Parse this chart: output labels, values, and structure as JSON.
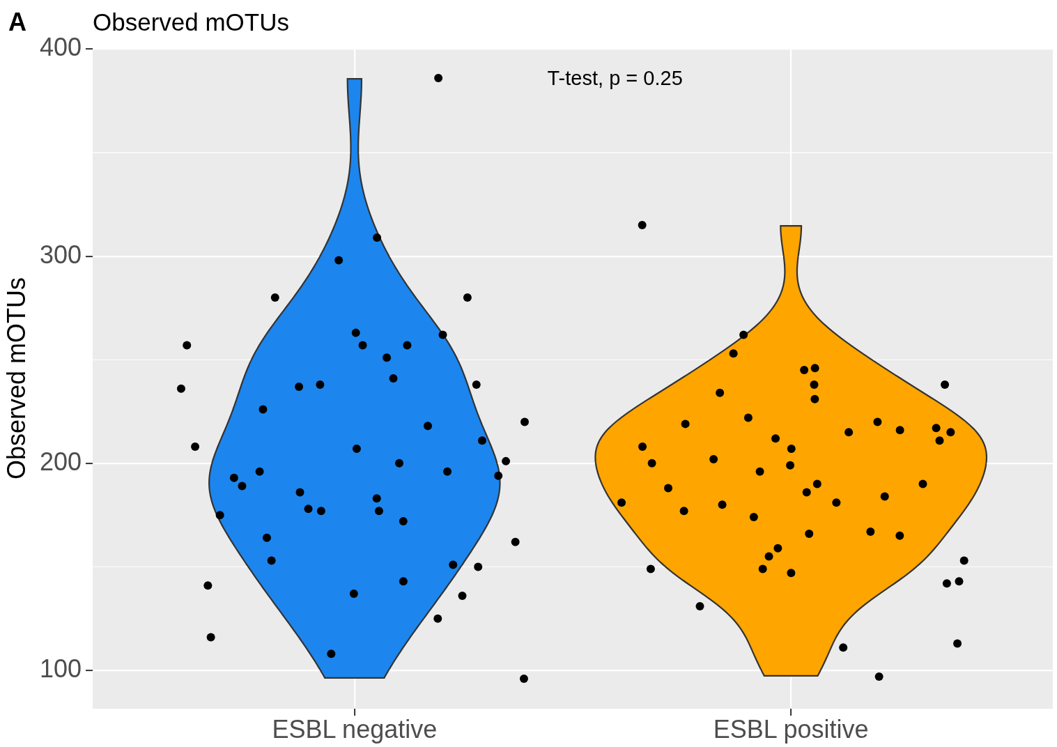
{
  "chart_data": {
    "type": "scatter",
    "title": "Observed mOTUs",
    "ylabel": "Observed mOTUs",
    "annotations": [
      "A",
      "T-test, p = 0.25"
    ],
    "categories": [
      "ESBL negative",
      "ESBL positive"
    ],
    "colors": [
      "#1c86ee",
      "#ffa500"
    ],
    "ylim": [
      81.5,
      400.5
    ],
    "yticks": [
      100,
      200,
      300,
      400
    ],
    "grid": true,
    "marker": "circle",
    "series": [
      {
        "color": "#000000",
        "x": [
          "ESBL negative",
          "ESBL negative",
          "ESBL negative",
          "ESBL negative",
          "ESBL negative",
          "ESBL negative",
          "ESBL negative",
          "ESBL negative",
          "ESBL negative",
          "ESBL negative",
          "ESBL negative",
          "ESBL negative",
          "ESBL negative",
          "ESBL negative",
          "ESBL negative",
          "ESBL negative",
          "ESBL negative",
          "ESBL negative",
          "ESBL negative",
          "ESBL negative",
          "ESBL negative",
          "ESBL negative",
          "ESBL negative",
          "ESBL negative",
          "ESBL negative",
          "ESBL negative",
          "ESBL negative",
          "ESBL negative",
          "ESBL negative",
          "ESBL negative",
          "ESBL negative",
          "ESBL negative",
          "ESBL negative",
          "ESBL negative",
          "ESBL negative",
          "ESBL negative",
          "ESBL negative",
          "ESBL negative",
          "ESBL negative",
          "ESBL negative",
          "ESBL negative",
          "ESBL negative",
          "ESBL negative",
          "ESBL negative",
          "ESBL negative",
          "ESBL negative",
          "ESBL negative",
          "ESBL negative",
          "ESBL negative"
        ],
        "values": [
          386,
          309,
          298,
          280,
          280,
          262,
          263,
          257,
          257,
          257,
          251,
          241,
          238,
          238,
          237,
          236,
          226,
          220,
          218,
          211,
          207,
          208,
          200,
          201,
          196,
          196,
          193,
          194,
          189,
          186,
          183,
          178,
          177,
          177,
          175,
          172,
          162,
          164,
          153,
          151,
          150,
          143,
          141,
          137,
          136,
          125,
          116,
          108,
          96
        ]
      },
      {
        "color": "#000000",
        "x": [
          "ESBL positive",
          "ESBL positive",
          "ESBL positive",
          "ESBL positive",
          "ESBL positive",
          "ESBL positive",
          "ESBL positive",
          "ESBL positive",
          "ESBL positive",
          "ESBL positive",
          "ESBL positive",
          "ESBL positive",
          "ESBL positive",
          "ESBL positive",
          "ESBL positive",
          "ESBL positive",
          "ESBL positive",
          "ESBL positive",
          "ESBL positive",
          "ESBL positive",
          "ESBL positive",
          "ESBL positive",
          "ESBL positive",
          "ESBL positive",
          "ESBL positive",
          "ESBL positive",
          "ESBL positive",
          "ESBL positive",
          "ESBL positive",
          "ESBL positive",
          "ESBL positive",
          "ESBL positive",
          "ESBL positive",
          "ESBL positive",
          "ESBL positive",
          "ESBL positive",
          "ESBL positive",
          "ESBL positive",
          "ESBL positive",
          "ESBL positive",
          "ESBL positive",
          "ESBL positive",
          "ESBL positive",
          "ESBL positive",
          "ESBL positive",
          "ESBL positive",
          "ESBL positive",
          "ESBL positive",
          "ESBL positive"
        ],
        "values": [
          315,
          262,
          253,
          238,
          245,
          246,
          238,
          234,
          231,
          222,
          217,
          216,
          219,
          220,
          215,
          215,
          212,
          211,
          207,
          208,
          199,
          200,
          202,
          196,
          190,
          190,
          188,
          186,
          184,
          181,
          181,
          180,
          174,
          177,
          167,
          166,
          165,
          159,
          155,
          153,
          149,
          149,
          147,
          143,
          142,
          131,
          113,
          111,
          97
        ]
      }
    ]
  }
}
